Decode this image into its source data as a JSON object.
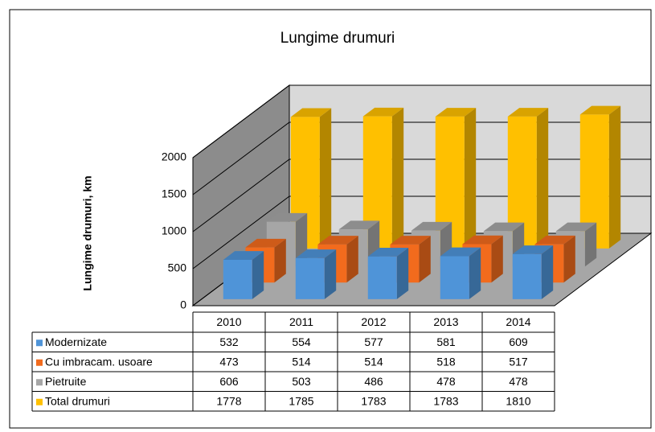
{
  "chart_data": {
    "type": "bar3d",
    "title": "Lungime drumuri",
    "y_label": "Lungime drumuri, km",
    "categories": [
      "2010",
      "2011",
      "2012",
      "2013",
      "2014"
    ],
    "series": [
      {
        "name": "Modernizate",
        "color": "#4f94d8",
        "values": [
          532,
          554,
          577,
          581,
          609
        ]
      },
      {
        "name": "Cu imbracam. usoare",
        "color": "#f26b1d",
        "values": [
          473,
          514,
          514,
          518,
          517
        ]
      },
      {
        "name": "Pietruite",
        "color": "#a6a6a6",
        "values": [
          606,
          503,
          486,
          478,
          478
        ]
      },
      {
        "name": "Total drumuri",
        "color": "#ffc000",
        "values": [
          1778,
          1785,
          1783,
          1783,
          1810
        ]
      }
    ],
    "ylim": [
      0,
      2000
    ],
    "yticks": [
      0,
      500,
      1000,
      1500,
      2000
    ],
    "grid": true,
    "data_table": true
  }
}
